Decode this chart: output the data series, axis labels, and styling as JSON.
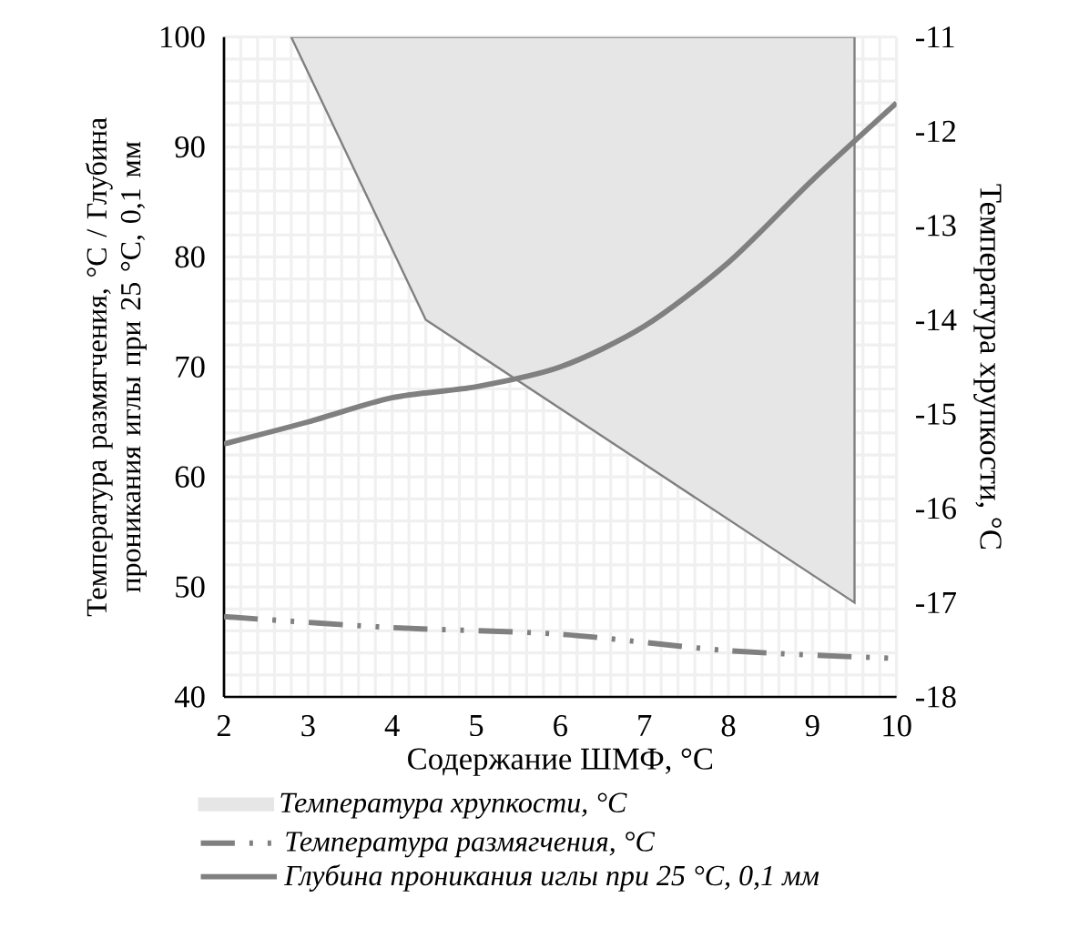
{
  "chart_data": {
    "type": "line",
    "xlabel": "Содержание ШМФ, °C",
    "ylabel": "Температура размягчения, °C / Глубина проникания иглы при 25 °C, 0,1 мм",
    "y2label": "Температура хрупкости, °C",
    "xlim": [
      2,
      10
    ],
    "xticks": [
      2,
      3,
      4,
      5,
      6,
      7,
      8,
      9,
      10
    ],
    "ylim": [
      40,
      100
    ],
    "yticks": [
      40,
      50,
      60,
      70,
      80,
      90,
      100
    ],
    "y2lim": [
      -18,
      -11
    ],
    "y2ticks": [
      -18,
      -17,
      -16,
      -15,
      -14,
      -13,
      -12,
      -11
    ],
    "grid": true,
    "legend": "bottom",
    "marker": "none",
    "series": [
      {
        "name": "Температура хрупкости, °C",
        "type": "area",
        "axis": "y2",
        "color": "#e6e6e6",
        "x": [
          2.8,
          4.4,
          9.5
        ],
        "values": [
          -11,
          -14,
          -17
        ]
      },
      {
        "name": "Температура размягчения, °C",
        "line_style": "dashdotdot",
        "color": "#808080",
        "x": [
          2,
          4,
          6,
          8,
          10
        ],
        "values": [
          47.3,
          46.3,
          45.7,
          44.2,
          43.5
        ]
      },
      {
        "name": "Глубина проникания иглы при 25 °C, 0,1 мм",
        "line_style": "solid",
        "color": "#808080",
        "x": [
          2,
          3,
          4,
          5,
          6,
          7,
          8,
          9,
          10
        ],
        "values": [
          63,
          65,
          67.2,
          68.2,
          70,
          73.7,
          79.5,
          87,
          94
        ]
      }
    ]
  }
}
